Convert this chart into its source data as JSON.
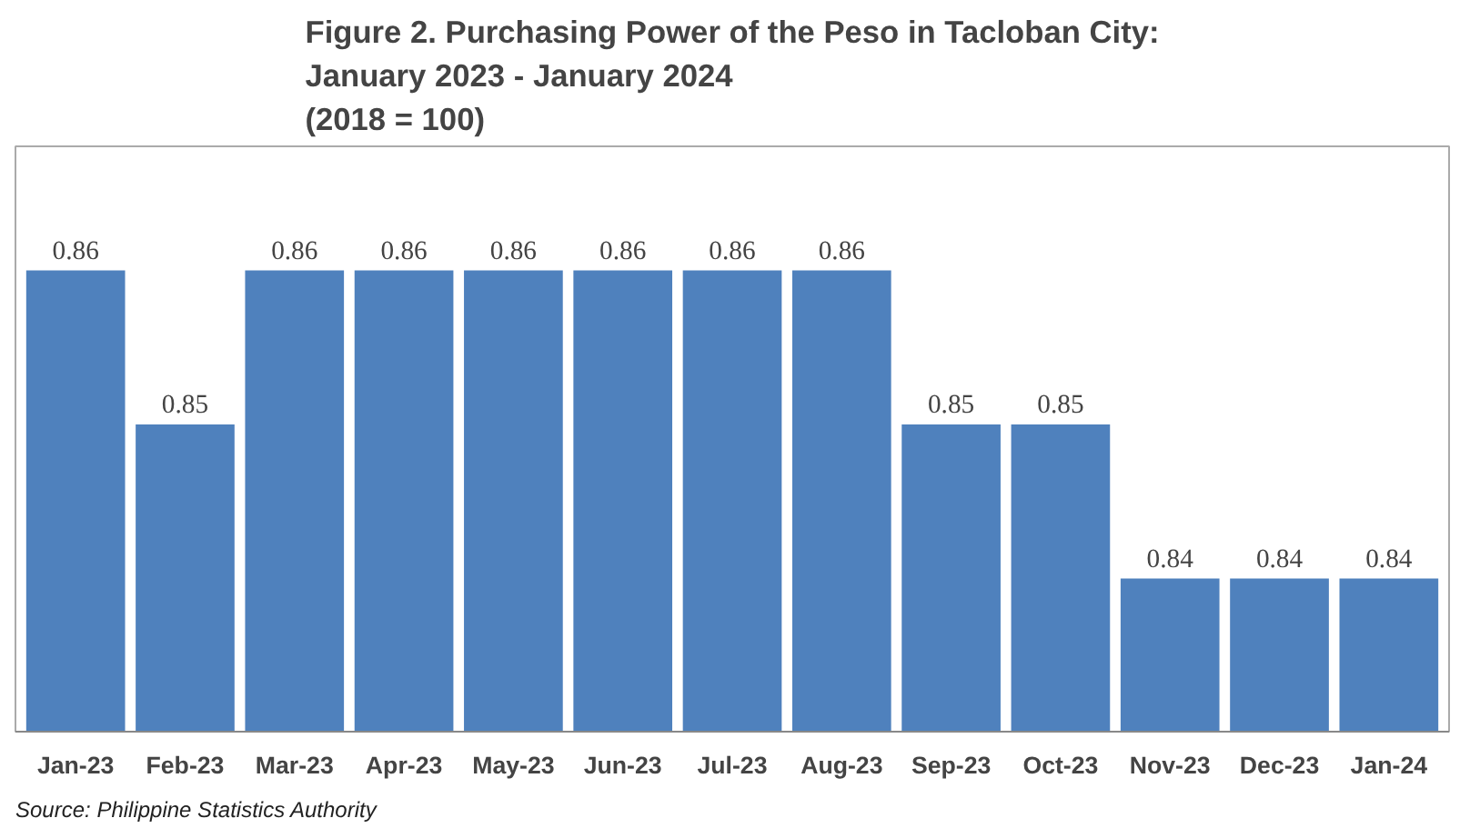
{
  "chart_data": {
    "type": "bar",
    "title": "Figure 2. Purchasing Power of the Peso in Tacloban City:\nJanuary 2023 - January 2024\n(2018 = 100)",
    "categories": [
      "Jan-23",
      "Feb-23",
      "Mar-23",
      "Apr-23",
      "May-23",
      "Jun-23",
      "Jul-23",
      "Aug-23",
      "Sep-23",
      "Oct-23",
      "Nov-23",
      "Dec-23",
      "Jan-24"
    ],
    "values": [
      0.86,
      0.85,
      0.86,
      0.86,
      0.86,
      0.86,
      0.86,
      0.86,
      0.85,
      0.85,
      0.84,
      0.84,
      0.84
    ],
    "color": "#4f81bd",
    "relative": false,
    "ylim": [
      0.83,
      0.868
    ],
    "data_labels": true,
    "grid": false,
    "annotations": [
      "Source: Philippine Statistics Authority"
    ]
  }
}
